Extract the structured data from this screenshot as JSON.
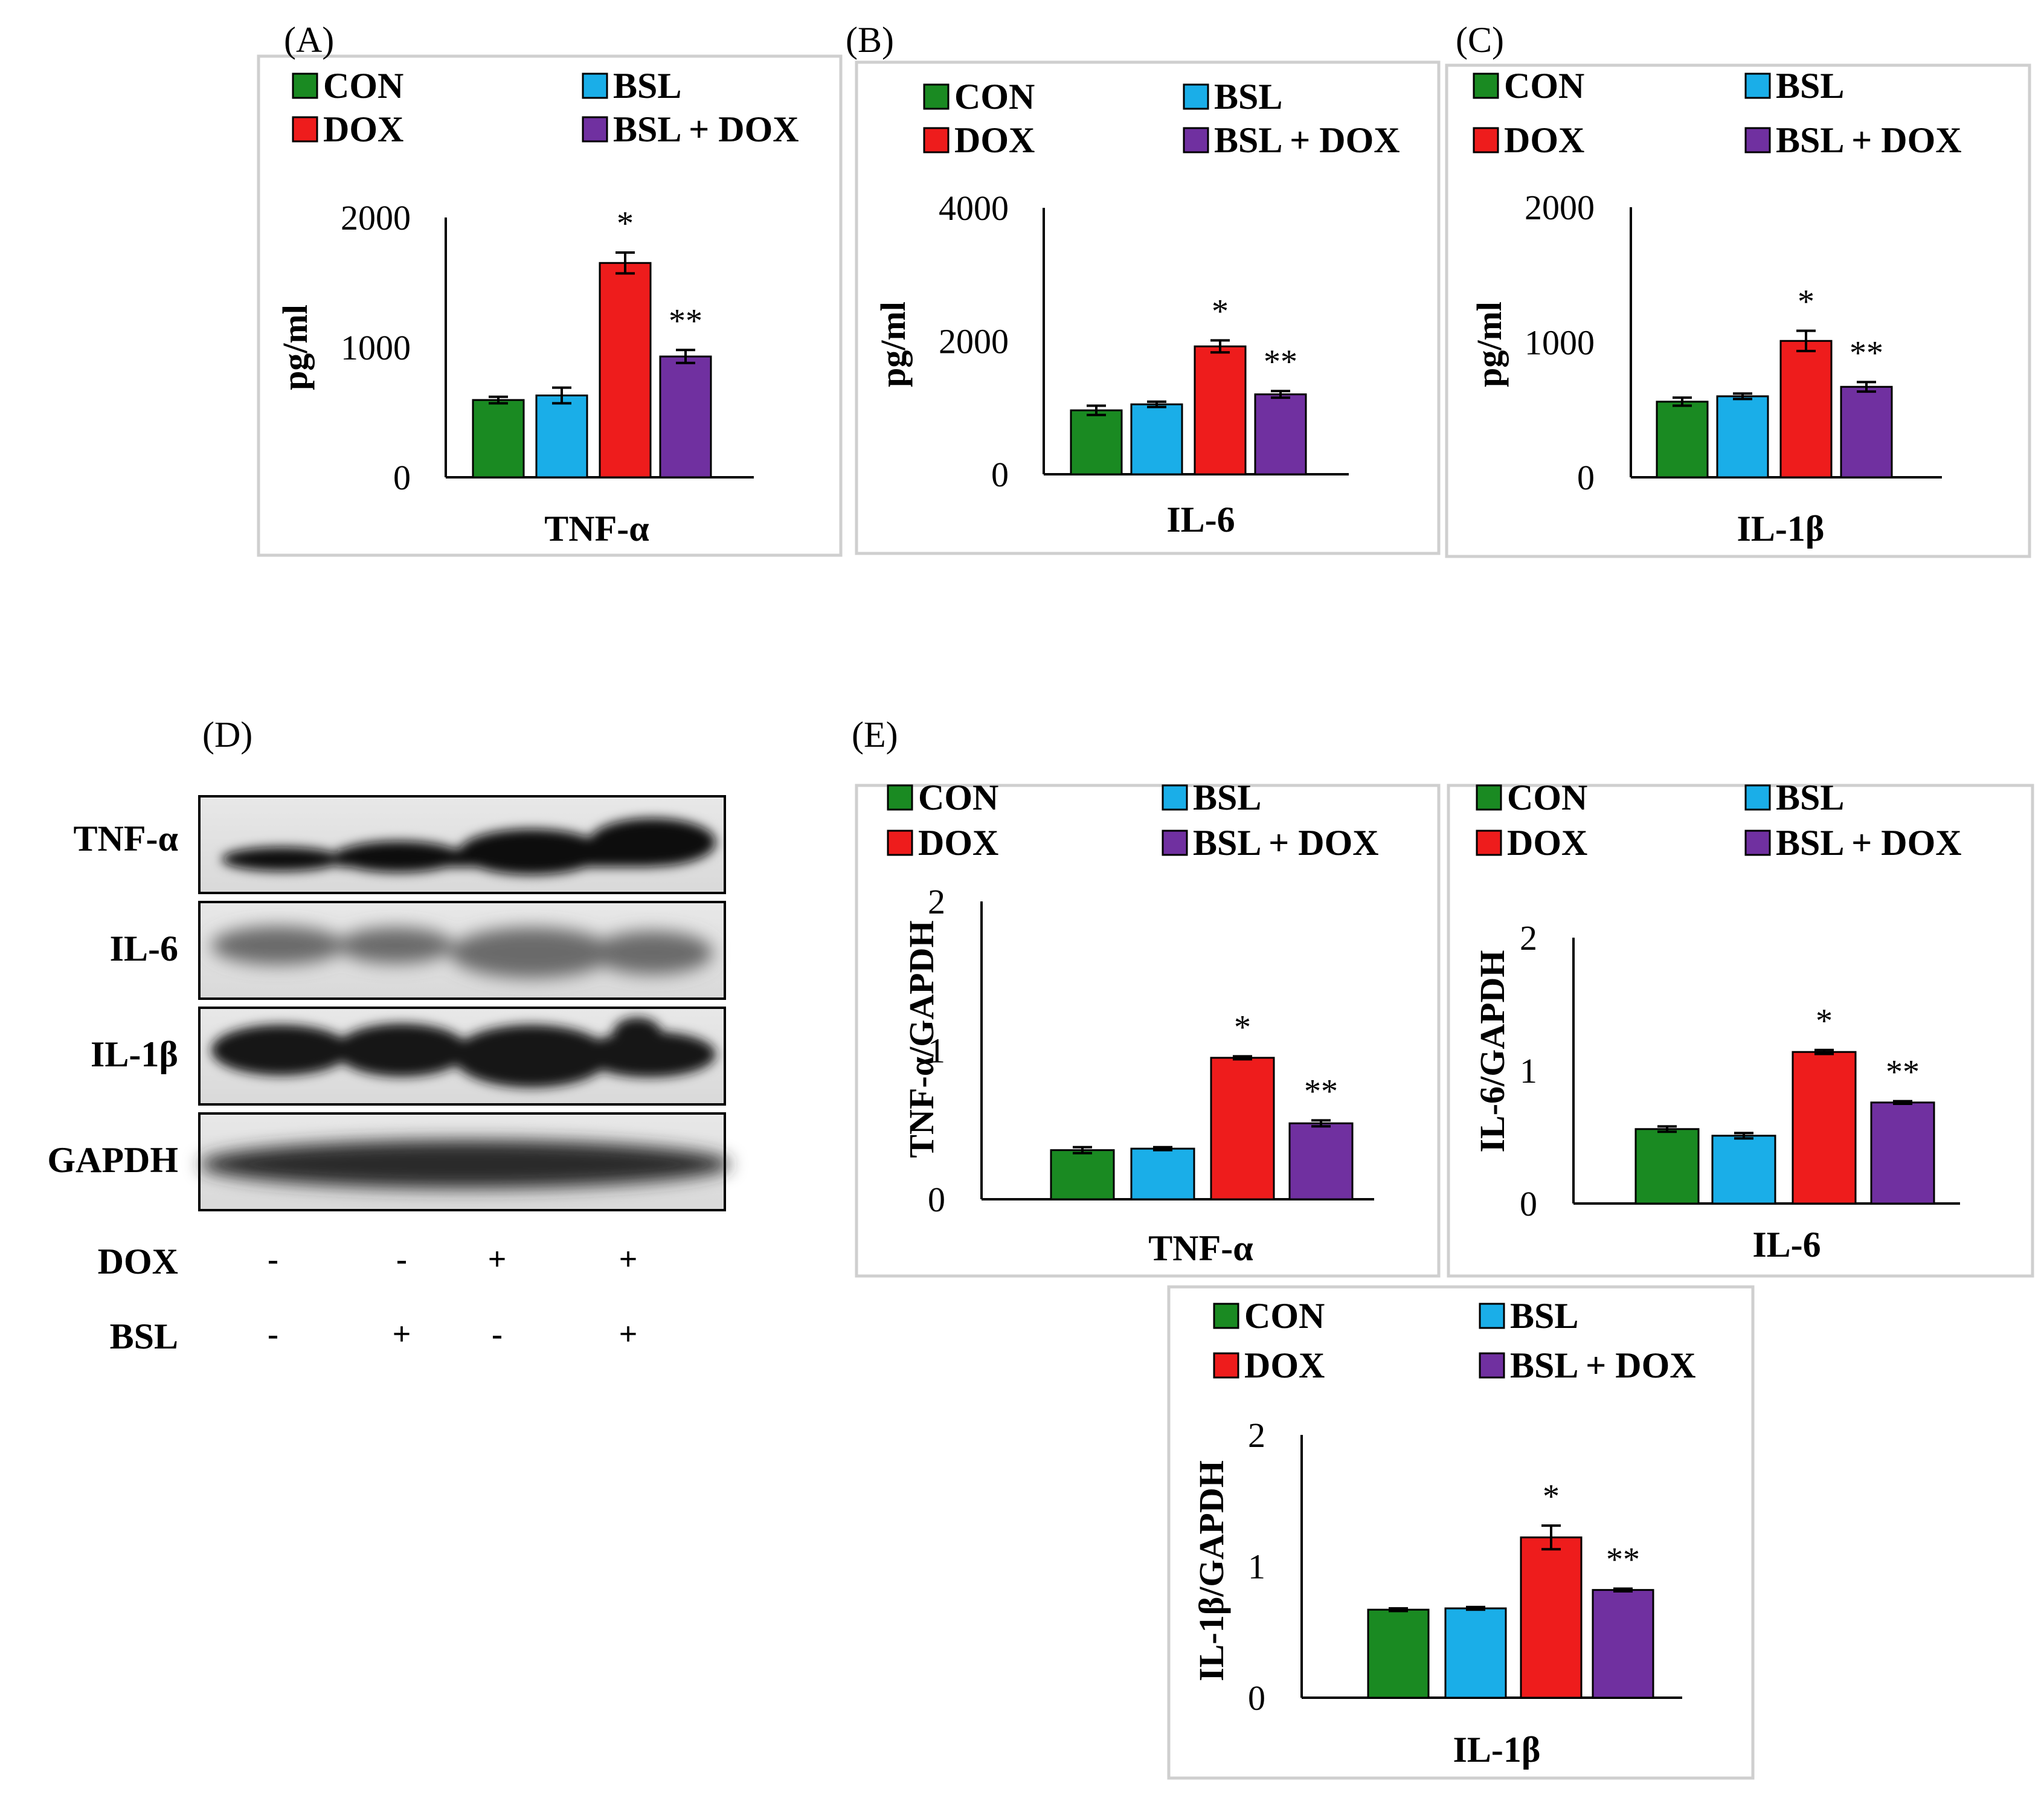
{
  "legend": {
    "entries": [
      {
        "name": "CON",
        "color": "#1a8a22"
      },
      {
        "name": "BSL",
        "color": "#1aaee8"
      },
      {
        "name": "DOX",
        "color": "#ee1c1c"
      },
      {
        "name": "BSL + DOX",
        "color": "#7030a0"
      }
    ]
  },
  "chart_data": [
    {
      "id": "A",
      "type": "bar",
      "panel_label": "(A)",
      "xlabel": "TNF-α",
      "ylabel": "pg/ml",
      "categories": [
        "CON",
        "BSL",
        "DOX",
        "BSL + DOX"
      ],
      "values": [
        595,
        630,
        1650,
        930
      ],
      "errors": [
        25,
        60,
        80,
        50
      ],
      "ylim": [
        0,
        2000
      ],
      "yticks": [
        "0",
        "1000",
        "2000"
      ],
      "tick_values": [
        0,
        1000,
        2000
      ],
      "annotations": [
        "",
        "",
        "*",
        "**"
      ]
    },
    {
      "id": "B",
      "type": "bar",
      "panel_label": "(B)",
      "xlabel": "IL-6",
      "ylabel": "pg/ml",
      "categories": [
        "CON",
        "BSL",
        "DOX",
        "BSL + DOX"
      ],
      "values": [
        960,
        1050,
        1920,
        1200
      ],
      "errors": [
        70,
        40,
        90,
        50
      ],
      "ylim": [
        0,
        4000
      ],
      "yticks": [
        "0",
        "2000",
        "4000"
      ],
      "tick_values": [
        0,
        2000,
        4000
      ],
      "annotations": [
        "",
        "",
        "*",
        "**"
      ]
    },
    {
      "id": "C",
      "type": "bar",
      "panel_label": "(C)",
      "xlabel": "IL-1β",
      "ylabel": "pg/ml",
      "categories": [
        "CON",
        "BSL",
        "DOX",
        "BSL + DOX"
      ],
      "values": [
        560,
        600,
        1010,
        670
      ],
      "errors": [
        30,
        20,
        75,
        35
      ],
      "ylim": [
        0,
        2000
      ],
      "yticks": [
        "0",
        "1000",
        "2000"
      ],
      "tick_values": [
        0,
        1000,
        2000
      ],
      "annotations": [
        "",
        "",
        "*",
        "**"
      ]
    },
    {
      "id": "E1",
      "type": "bar",
      "panel_label": "(E)",
      "xlabel": "TNF-α",
      "ylabel": "TNF-α/GAPDH",
      "categories": [
        "CON",
        "BSL",
        "DOX",
        "BSL + DOX"
      ],
      "values": [
        0.33,
        0.34,
        0.95,
        0.51
      ],
      "errors": [
        0.02,
        0.01,
        0.01,
        0.02
      ],
      "ylim": [
        0,
        2
      ],
      "yticks": [
        "0",
        "1",
        "2"
      ],
      "tick_values": [
        0,
        1,
        2
      ],
      "annotations": [
        "",
        "",
        "*",
        "**"
      ]
    },
    {
      "id": "E2",
      "type": "bar",
      "panel_label": "",
      "xlabel": "IL-6",
      "ylabel": "IL-6/GAPDH",
      "categories": [
        "CON",
        "BSL",
        "DOX",
        "BSL + DOX"
      ],
      "values": [
        0.56,
        0.51,
        1.14,
        0.76
      ],
      "errors": [
        0.02,
        0.02,
        0.015,
        0.01
      ],
      "ylim": [
        0,
        2
      ],
      "yticks": [
        "0",
        "1",
        "2"
      ],
      "tick_values": [
        0,
        1,
        2
      ],
      "annotations": [
        "",
        "",
        "*",
        "**"
      ]
    },
    {
      "id": "E3",
      "type": "bar",
      "panel_label": "",
      "xlabel": "IL-1β",
      "ylabel": "IL-1β/GAPDH",
      "categories": [
        "CON",
        "BSL",
        "DOX",
        "BSL + DOX"
      ],
      "values": [
        0.67,
        0.68,
        1.22,
        0.82
      ],
      "errors": [
        0.01,
        0.01,
        0.09,
        0.01
      ],
      "ylim": [
        0,
        2
      ],
      "yticks": [
        "0",
        "1",
        "2"
      ],
      "tick_values": [
        0,
        1,
        2
      ],
      "annotations": [
        "",
        "",
        "*",
        "**"
      ]
    }
  ],
  "western_blot": {
    "panel_label": "(D)",
    "bands": [
      "TNF-α",
      "IL-6",
      "IL-1β",
      "GAPDH"
    ],
    "conditions": [
      {
        "name": "DOX",
        "signs": [
          "-",
          "-",
          "+",
          "+"
        ]
      },
      {
        "name": "BSL",
        "signs": [
          "-",
          "+",
          "-",
          "+"
        ]
      }
    ]
  }
}
